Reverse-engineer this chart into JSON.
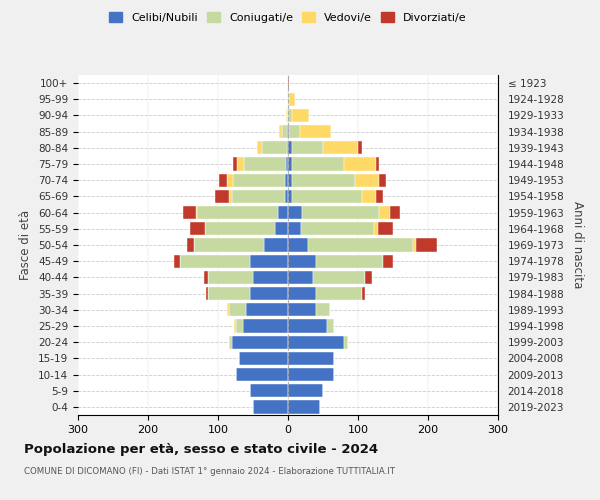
{
  "age_groups": [
    "0-4",
    "5-9",
    "10-14",
    "15-19",
    "20-24",
    "25-29",
    "30-34",
    "35-39",
    "40-44",
    "45-49",
    "50-54",
    "55-59",
    "60-64",
    "65-69",
    "70-74",
    "75-79",
    "80-84",
    "85-89",
    "90-94",
    "95-99",
    "100+"
  ],
  "birth_years": [
    "2019-2023",
    "2014-2018",
    "2009-2013",
    "2004-2008",
    "1999-2003",
    "1994-1998",
    "1989-1993",
    "1984-1988",
    "1979-1983",
    "1974-1978",
    "1969-1973",
    "1964-1968",
    "1959-1963",
    "1954-1958",
    "1949-1953",
    "1944-1948",
    "1939-1943",
    "1934-1938",
    "1929-1933",
    "1924-1928",
    "≤ 1923"
  ],
  "colors": {
    "celibi": "#4472C4",
    "coniugati": "#C5D9A0",
    "vedovi": "#FFD966",
    "divorziati": "#C0392B"
  },
  "males": {
    "celibi": [
      50,
      55,
      75,
      70,
      80,
      65,
      60,
      55,
      50,
      55,
      35,
      18,
      15,
      5,
      4,
      3,
      2,
      1,
      0,
      0,
      0
    ],
    "coniugati": [
      0,
      0,
      0,
      0,
      5,
      10,
      25,
      60,
      65,
      100,
      100,
      100,
      115,
      75,
      75,
      60,
      35,
      8,
      2,
      0,
      0
    ],
    "vedovi": [
      0,
      0,
      0,
      0,
      0,
      2,
      2,
      0,
      0,
      0,
      0,
      0,
      2,
      5,
      8,
      10,
      8,
      4,
      1,
      0,
      0
    ],
    "divorziati": [
      0,
      0,
      0,
      0,
      0,
      0,
      0,
      2,
      5,
      8,
      10,
      22,
      18,
      20,
      12,
      5,
      0,
      0,
      0,
      0,
      0
    ]
  },
  "females": {
    "celibi": [
      45,
      50,
      65,
      65,
      80,
      55,
      40,
      40,
      35,
      40,
      28,
      18,
      20,
      5,
      5,
      5,
      5,
      2,
      0,
      0,
      0
    ],
    "coniugati": [
      0,
      0,
      0,
      0,
      5,
      10,
      20,
      65,
      75,
      95,
      150,
      105,
      110,
      100,
      90,
      75,
      45,
      15,
      5,
      2,
      0
    ],
    "vedovi": [
      0,
      0,
      0,
      0,
      0,
      0,
      0,
      0,
      0,
      0,
      5,
      5,
      15,
      20,
      35,
      45,
      50,
      45,
      25,
      8,
      0
    ],
    "divorziati": [
      0,
      0,
      0,
      0,
      0,
      0,
      0,
      5,
      10,
      15,
      30,
      22,
      15,
      10,
      10,
      5,
      5,
      0,
      0,
      0,
      2
    ]
  },
  "title": "Popolazione per età, sesso e stato civile - 2024",
  "subtitle": "COMUNE DI DICOMANO (FI) - Dati ISTAT 1° gennaio 2024 - Elaborazione TUTTITALIA.IT",
  "ylabel_left": "Fasce di età",
  "ylabel_right": "Anni di nascita",
  "xlim": 300,
  "legend_labels": [
    "Celibi/Nubili",
    "Coniugati/e",
    "Vedovi/e",
    "Divorziati/e"
  ],
  "bg_color": "#f0f0f0",
  "plot_bg_color": "#ffffff"
}
